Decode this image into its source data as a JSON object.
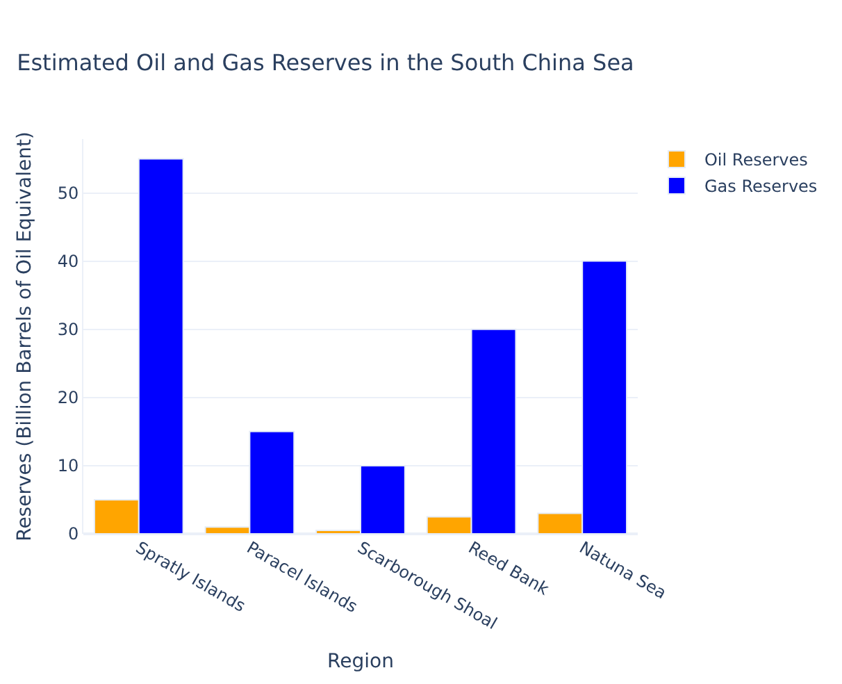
{
  "chart_data": {
    "type": "bar",
    "title": "Estimated Oil and Gas Reserves in the South China Sea",
    "xlabel": "Region",
    "ylabel": "Reserves (Billion Barrels of Oil Equivalent)",
    "categories": [
      "Spratly Islands",
      "Paracel Islands",
      "Scarborough Shoal",
      "Reed Bank",
      "Natuna Sea"
    ],
    "series": [
      {
        "name": "Oil Reserves",
        "color": "#ffa500",
        "values": [
          5,
          1,
          0.5,
          2.5,
          3
        ]
      },
      {
        "name": "Gas Reserves",
        "color": "#0000ff",
        "values": [
          55,
          15,
          10,
          30,
          40
        ]
      }
    ],
    "ylim": [
      0,
      57.9
    ],
    "yticks": [
      0,
      10,
      20,
      30,
      40,
      50
    ],
    "grid": "y",
    "legend": "top right"
  }
}
